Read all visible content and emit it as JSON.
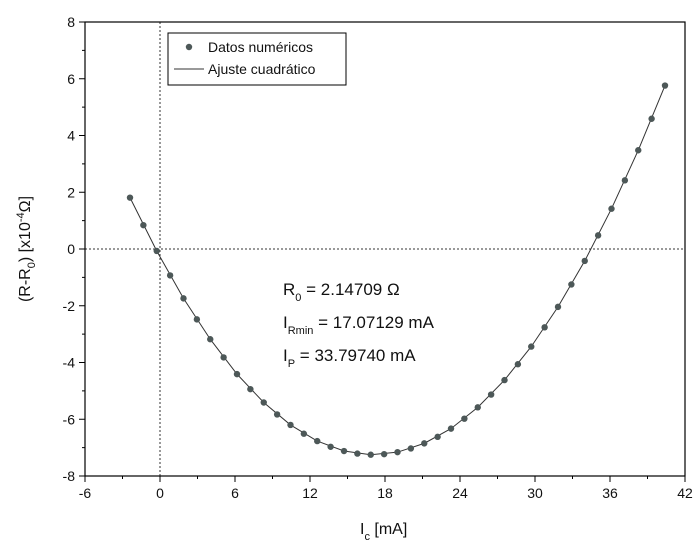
{
  "chart_data": {
    "type": "scatter",
    "x_label": {
      "main": "I",
      "sub": "c",
      "rest": " [mA]"
    },
    "y_label": {
      "pre": "(R-R",
      "sub": "0",
      "mid": ") [x10",
      "sup": "-4",
      "post": "Ω]"
    },
    "xlim": [
      -6,
      42
    ],
    "xticks": [
      -6,
      0,
      6,
      12,
      18,
      24,
      30,
      36,
      42
    ],
    "ylim": [
      -8,
      8
    ],
    "yticks": [
      -8,
      -6,
      -4,
      -2,
      0,
      2,
      4,
      6,
      8
    ],
    "reference_lines": {
      "x": 0,
      "y": 0
    },
    "legend": "upper left",
    "series": [
      {
        "name": "Datos numéricos",
        "kind": "scatter",
        "color": "#4d5858",
        "x": [
          -2.4,
          -1.33,
          -0.26,
          0.81,
          1.88,
          2.95,
          4.02,
          5.09,
          6.16,
          7.23,
          8.3,
          9.37,
          10.44,
          11.51,
          12.58,
          13.65,
          14.72,
          15.79,
          16.86,
          17.93,
          19.0,
          20.07,
          21.14,
          22.21,
          23.28,
          24.35,
          25.42,
          26.49,
          27.56,
          28.63,
          29.7,
          30.77,
          31.84,
          32.91,
          33.98,
          35.05,
          36.12,
          37.19,
          38.26,
          39.33,
          40.4
        ],
        "values": [
          1.81,
          0.84,
          -0.07,
          -0.93,
          -1.74,
          -2.48,
          -3.18,
          -3.82,
          -4.41,
          -4.94,
          -5.41,
          -5.83,
          -6.2,
          -6.51,
          -6.77,
          -6.97,
          -7.12,
          -7.21,
          -7.25,
          -7.23,
          -7.16,
          -7.03,
          -6.85,
          -6.62,
          -6.33,
          -5.98,
          -5.58,
          -5.13,
          -4.62,
          -4.06,
          -3.44,
          -2.76,
          -2.04,
          -1.25,
          -0.42,
          0.48,
          1.42,
          2.42,
          3.48,
          4.59,
          5.76
        ]
      },
      {
        "name": "Ajuste cuadrático",
        "kind": "line",
        "color": "#333333",
        "x": [
          -2.4,
          -0.26,
          1.88,
          4.02,
          6.16,
          8.3,
          10.44,
          12.58,
          14.72,
          16.86,
          19.0,
          21.14,
          23.28,
          25.42,
          27.56,
          29.7,
          31.84,
          33.98,
          36.12,
          38.26,
          40.4
        ],
        "values": [
          1.81,
          -0.07,
          -1.74,
          -3.18,
          -4.41,
          -5.41,
          -6.2,
          -6.77,
          -7.12,
          -7.25,
          -7.16,
          -6.85,
          -6.33,
          -5.58,
          -4.62,
          -3.44,
          -2.04,
          -0.42,
          1.42,
          3.48,
          5.76
        ]
      }
    ],
    "annotations": [
      {
        "symbol": "R",
        "sub": "0",
        "text": " = 2.14709 Ω"
      },
      {
        "symbol": "I",
        "sub": "Rmin",
        "text": " = 17.07129 mA"
      },
      {
        "symbol": "I",
        "sub": "P",
        "text": " = 33.79740 mA"
      }
    ]
  }
}
